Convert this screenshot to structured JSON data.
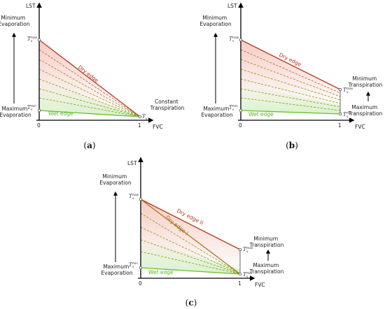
{
  "panels": [
    {
      "id": "a",
      "caption_letter": "a",
      "y_axis_label": "LST",
      "x_axis_label": "FVC",
      "x_tick_0": "0",
      "x_tick_1": "1",
      "left_top_label": [
        "Minimum",
        "Evaporation"
      ],
      "left_bottom_label": [
        "Maximum",
        "Evaporation"
      ],
      "right_bottom_label": [
        "Constant",
        "Transpiration"
      ],
      "dry_edge_label": "Dry edge",
      "wet_edge_label": "Wet edge",
      "ts_max_label": "T",
      "ts_max_sub": "s",
      "ts_max_sup": "max",
      "ts_min_label": "T",
      "ts_min_sub": "s",
      "ts_min_sup": "min",
      "end_label": "T",
      "end_sub": "v"
    },
    {
      "id": "b",
      "caption_letter": "b",
      "y_axis_label": "LST",
      "x_axis_label": "FVC",
      "x_tick_0": "0",
      "x_tick_1": "1",
      "left_top_label": [
        "Minimum",
        "Evaporation"
      ],
      "left_bottom_label": [
        "Maximum",
        "Evaporation"
      ],
      "right_top_label": [
        "Minimum",
        "Transpiration"
      ],
      "right_bottom_label": [
        "Maximum",
        "Transpiration"
      ],
      "dry_edge_label": "Dry edge",
      "wet_edge_label": "Wet edge",
      "ts_max_label": "T",
      "ts_max_sub": "s",
      "ts_max_sup": "max",
      "ts_min_label": "T",
      "ts_min_sub": "s",
      "ts_min_sup": "min",
      "tv_max_label": "T",
      "tv_max_sub": "v",
      "tv_max_sup": "max",
      "tv_min_label": "T",
      "tv_min_sub": "v",
      "tv_min_sup": "min"
    },
    {
      "id": "c",
      "caption_letter": "c",
      "y_axis_label": "LST",
      "x_axis_label": "FVC",
      "x_tick_0": "0",
      "x_tick_1": "1",
      "left_top_label": [
        "Minimum",
        "Evaporation"
      ],
      "left_bottom_label": [
        "Maximum",
        "Evaporation"
      ],
      "right_top_label": [
        "Minimum",
        "Transpiration"
      ],
      "right_bottom_label": [
        "Maximum",
        "Transpiration"
      ],
      "dry_edge_1_label": "Dry edge I",
      "dry_edge_2_label": "Dry edge II",
      "wet_edge_label": "Wet edge",
      "ts_max_label": "T",
      "ts_max_sub": "s",
      "ts_max_sup": "max",
      "ts_min_label": "T",
      "ts_min_sub": "s",
      "ts_min_sup": "min",
      "tv_max_label": "T",
      "tv_max_sub": "v",
      "tv_max_sup": "max",
      "tv_min_label": "T",
      "tv_min_sub": "v",
      "tv_min_sup": "min"
    }
  ],
  "colors": {
    "dry_edge": "#b53a1f",
    "dry_edge_1": "#a87a1a",
    "wet_edge": "#66c02e",
    "isoline": "#7a9a10",
    "dry_fill": "#f7d6d0",
    "wet_fill": "#dff3d3",
    "axis": "#000000"
  }
}
